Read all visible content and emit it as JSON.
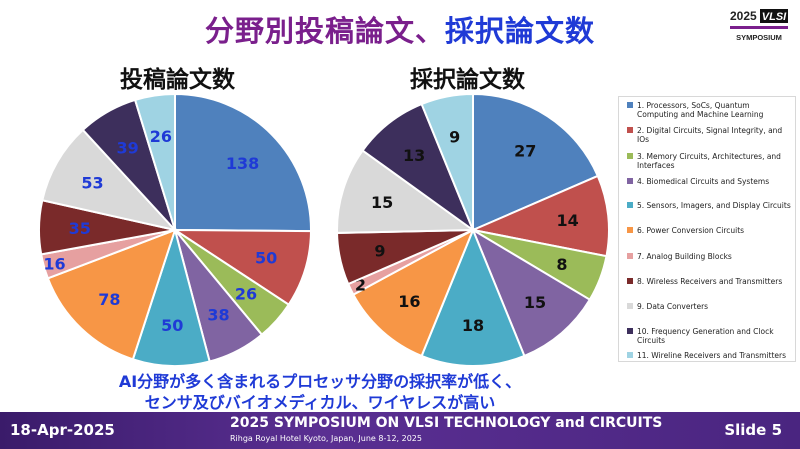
{
  "header": {
    "title_part1": "分野別投稿論文、",
    "title_part2": "採択論文数",
    "logo_year": "2025",
    "logo_name": "VLSI",
    "logo_sub": "SYMPOSIUM"
  },
  "chart_data": [
    {
      "type": "pie",
      "title": "投稿論文数",
      "categories": [
        "1. Processors, SoCs, Quantum Computing and Machine Learning",
        "2. Digital Circuits, Signal Integrity, and IOs",
        "3. Memory Circuits, Architectures, and Interfaces",
        "4. Biomedical Circuits and Systems",
        "5. Sensors, Imagers, and Display Circuits",
        "6. Power Conversion Circuits",
        "7. Analog Building Blocks",
        "8. Wireless Receivers and Transmitters",
        "9. Data Converters",
        "10. Frequency Generation and Clock Circuits",
        "11. Wireline Receivers and Transmitters"
      ],
      "values": [
        138,
        50,
        26,
        38,
        50,
        78,
        16,
        35,
        53,
        39,
        26
      ]
    },
    {
      "type": "pie",
      "title": "採択論文数",
      "categories": [
        "1. Processors, SoCs, Quantum Computing and Machine Learning",
        "2. Digital Circuits, Signal Integrity, and IOs",
        "3. Memory Circuits, Architectures, and Interfaces",
        "4. Biomedical Circuits and Systems",
        "5. Sensors, Imagers, and Display Circuits",
        "6. Power Conversion Circuits",
        "7. Analog Building Blocks",
        "8. Wireless Receivers and Transmitters",
        "9. Data Converters",
        "10. Frequency Generation and Clock Circuits",
        "11. Wireline Receivers and Transmitters"
      ],
      "values": [
        27,
        14,
        8,
        15,
        18,
        16,
        2,
        9,
        15,
        13,
        9
      ]
    }
  ],
  "series_colors": [
    "#4f81bd",
    "#c0504d",
    "#9bbb59",
    "#8064a2",
    "#4bacc6",
    "#f79646",
    "#e6a0a0",
    "#7a2a2a",
    "#d9d9d9",
    "#3d2f5c",
    "#9fd3e3"
  ],
  "label_colors": {
    "submitted": "#1f3ad6",
    "accepted": "#111111"
  },
  "caption": {
    "line1": "AI分野が多く含まれるプロセッサ分野の採択率が低く、",
    "line2": "センサ及びバイオメディカル、ワイヤレスが高い"
  },
  "footer": {
    "date": "18-Apr-2025",
    "conference": "2025 SYMPOSIUM ON VLSI TECHNOLOGY and CIRCUITS",
    "venue": "Rihga Royal Hotel Kyoto, Japan, June 8-12, 2025",
    "slide": "Slide 5"
  }
}
